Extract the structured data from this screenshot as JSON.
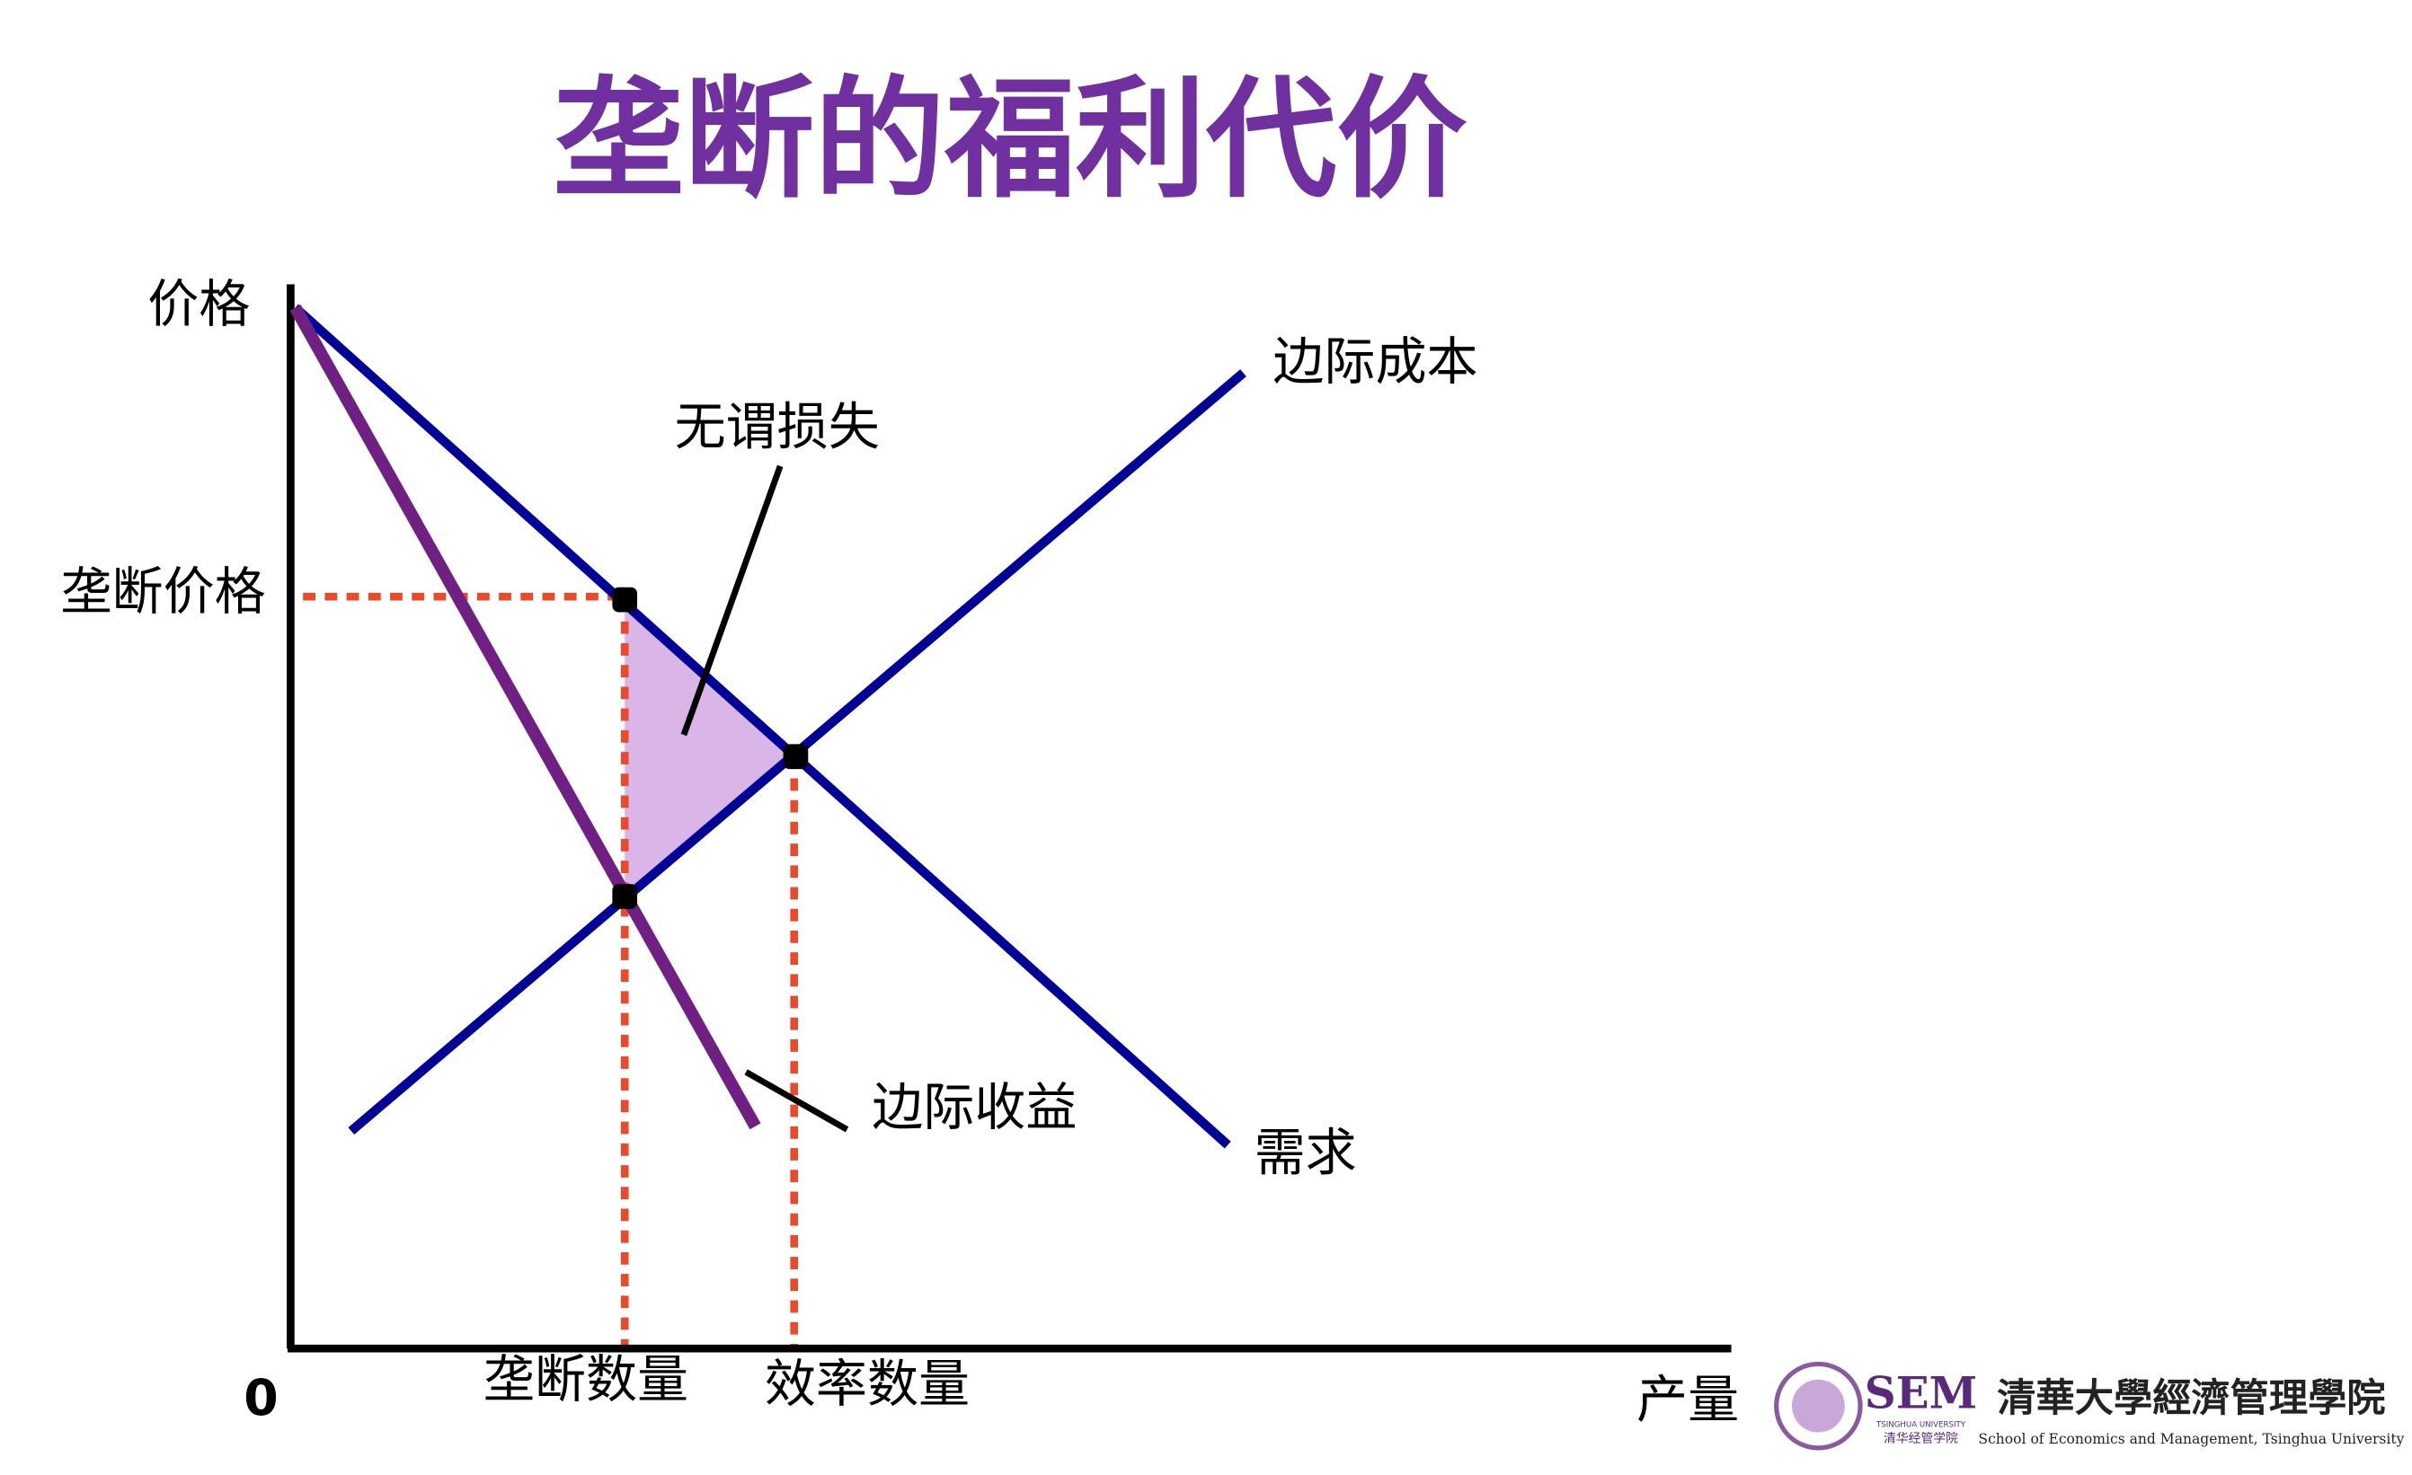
{
  "title": "垄断的福利代价",
  "axes": {
    "y_label": "价格",
    "x_label": "产量",
    "origin": "0"
  },
  "labels": {
    "monopoly_price": "垄断价格",
    "marginal_cost": "边际成本",
    "deadweight_loss": "无谓损失",
    "marginal_revenue": "边际收益",
    "demand": "需求",
    "monopoly_quantity": "垄断数量",
    "efficient_quantity": "效率数量"
  },
  "logo": {
    "abbr": "SEM",
    "university_en": "TSINGHUA UNIVERSITY",
    "school_cn_short": "清华经管学院",
    "school_cn": "清華大學經濟管理學院",
    "school_en": "School of Economics and Management, Tsinghua University"
  }
}
